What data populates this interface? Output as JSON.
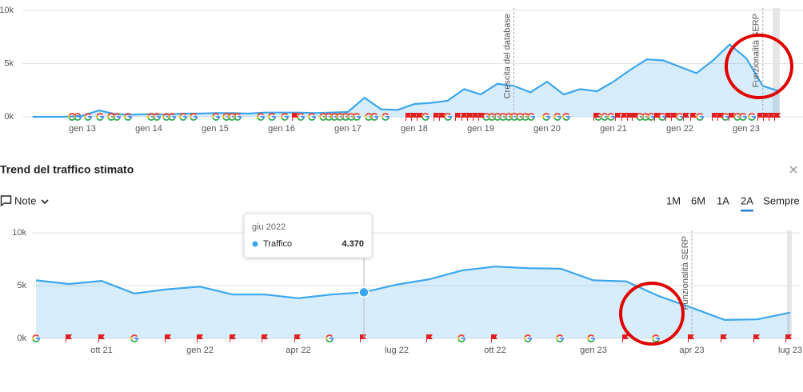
{
  "chart_data": [
    {
      "type": "area",
      "color": "#3aa6ee",
      "categories": [
        null,
        null,
        null,
        "gen 13",
        null,
        null,
        null,
        "gen 14",
        null,
        null,
        null,
        "gen 15",
        null,
        null,
        null,
        "gen 16",
        null,
        null,
        null,
        "gen 17",
        null,
        null,
        null,
        "gen 18",
        null,
        null,
        null,
        "gen 19",
        null,
        null,
        null,
        "gen 20",
        null,
        null,
        null,
        "gen 21",
        null,
        null,
        null,
        "gen 22",
        null,
        null,
        null,
        "gen 23",
        null,
        null
      ],
      "values": [
        0,
        0,
        0,
        100,
        600,
        250,
        200,
        250,
        200,
        300,
        300,
        350,
        350,
        300,
        400,
        400,
        400,
        350,
        400,
        450,
        1800,
        700,
        650,
        1200,
        1300,
        1500,
        2600,
        2100,
        3100,
        2900,
        2300,
        3300,
        2100,
        2600,
        2400,
        3300,
        4400,
        5400,
        5300,
        4700,
        4100,
        5300,
        6800,
        5500,
        2900,
        2400
      ],
      "ylim": [
        0,
        10000
      ],
      "yticks": [
        {
          "value": 0,
          "label": "0k"
        },
        {
          "value": 5000,
          "label": "5k"
        },
        {
          "value": 10000,
          "label": "10k"
        }
      ],
      "grid": true,
      "annotations": [
        {
          "label": "Crescita del database",
          "index": 29
        },
        {
          "label": "Funzionalità SERP",
          "index": 44
        }
      ]
    },
    {
      "type": "area",
      "title": "Trend del traffico stimato",
      "color": "#3aa6ee",
      "categories": [
        null,
        null,
        "ott 21",
        null,
        null,
        "gen 22",
        null,
        null,
        "apr 22",
        null,
        null,
        "lug 22",
        null,
        null,
        "ott 22",
        null,
        null,
        "gen 23",
        null,
        null,
        "apr 23",
        null,
        null,
        "lug 23"
      ],
      "values": [
        5500,
        5150,
        5450,
        4250,
        4650,
        4900,
        4150,
        4150,
        3800,
        4150,
        4370,
        5100,
        5600,
        6450,
        6800,
        6650,
        6600,
        5500,
        5400,
        4000,
        2900,
        1750,
        1800,
        2450
      ],
      "ylim": [
        0,
        10000
      ],
      "yticks": [
        {
          "value": 0,
          "label": "0k"
        },
        {
          "value": 5000,
          "label": "5k"
        },
        {
          "value": 10000,
          "label": "10k"
        }
      ],
      "grid": true,
      "annotations": [
        {
          "label": "Funzionalità SERP",
          "index": 20
        }
      ],
      "tooltip": {
        "title": "giu 2022",
        "label": "Traffico",
        "value_label": "4.370",
        "index": 10
      }
    }
  ],
  "toolbar": {
    "note": "Note",
    "ranges": [
      "1M",
      "6M",
      "1A",
      "2A",
      "Sempre"
    ],
    "selected": "2A"
  }
}
